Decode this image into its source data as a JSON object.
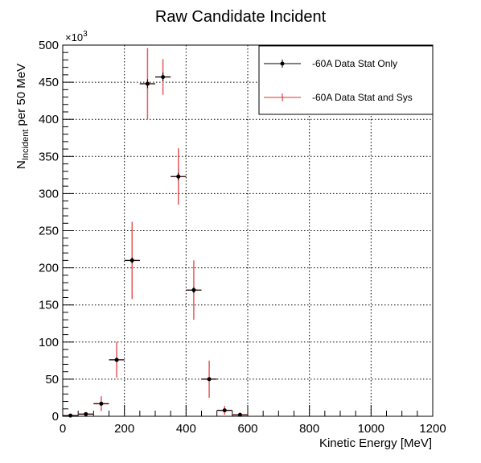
{
  "chart_data": {
    "type": "scatter",
    "title": "Raw Candidate Incident",
    "xlabel": "Kinetic Energy [MeV]",
    "ylabel_main": "N",
    "ylabel_sub": "Incident",
    "ylabel_rest": " per 50 MeV",
    "y_exponent_base": "×10",
    "y_exponent_power": "3",
    "xlim": [
      0,
      1200
    ],
    "ylim": [
      0,
      500
    ],
    "x_ticks": [
      "0",
      "200",
      "400",
      "600",
      "800",
      "1000",
      "1200"
    ],
    "y_ticks": [
      "0",
      "50",
      "100",
      "150",
      "200",
      "250",
      "300",
      "350",
      "400",
      "450",
      "500"
    ],
    "grid": true,
    "legend_position": "top-right",
    "bin_width": 50,
    "series": [
      {
        "name": "-60A Data Stat Only",
        "color": "#000000",
        "x": [
          25,
          75,
          125,
          175,
          225,
          275,
          325,
          375,
          425,
          475,
          525,
          575
        ],
        "y": [
          1,
          3,
          17,
          76,
          210,
          448,
          457,
          323,
          170,
          50,
          8,
          2
        ],
        "err": [
          0.5,
          1,
          2,
          3,
          4,
          6,
          6,
          5,
          4,
          2,
          1,
          0.5
        ]
      },
      {
        "name": "-60A Data Stat and Sys",
        "color": "#e8585c",
        "x": [
          25,
          75,
          125,
          175,
          225,
          275,
          325,
          375,
          425,
          475,
          525,
          575
        ],
        "y": [
          1,
          3,
          17,
          76,
          210,
          448,
          457,
          323,
          170,
          50,
          8,
          2
        ],
        "err": [
          1,
          2,
          10,
          24,
          52,
          48,
          24,
          38,
          40,
          25,
          6,
          2
        ]
      }
    ]
  }
}
